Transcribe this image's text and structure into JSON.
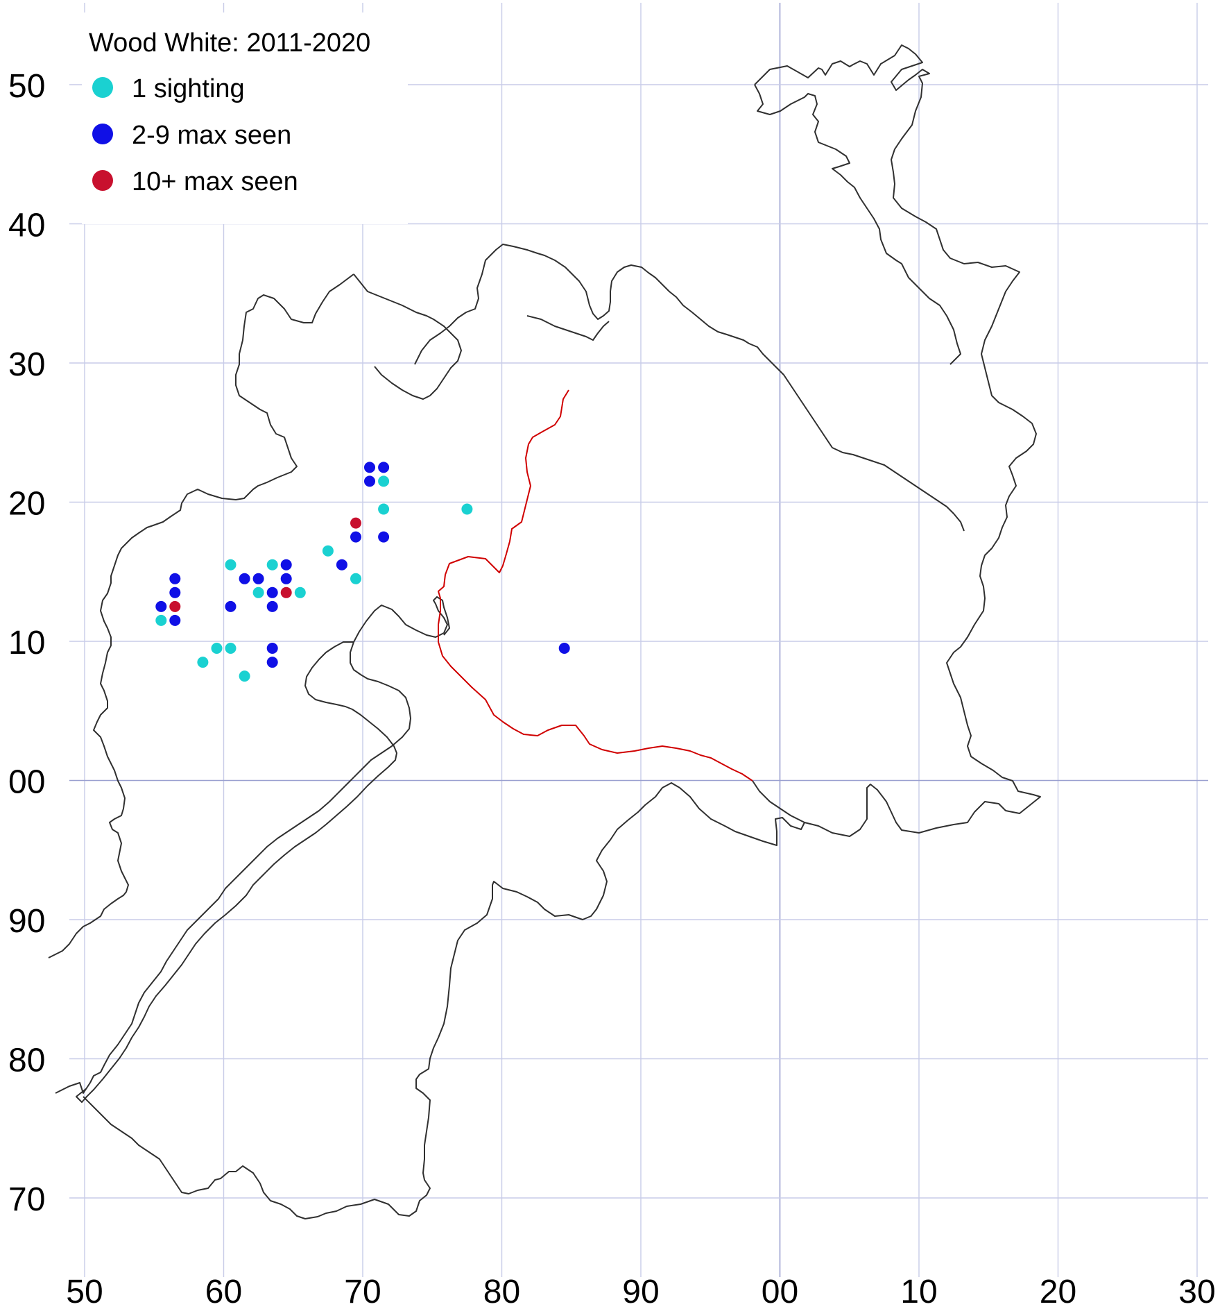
{
  "title": "Wood White:  2011-2020",
  "legend": [
    {
      "label": "1 sighting",
      "color": "#1ad1d1",
      "key": "one"
    },
    {
      "label": "2-9 max seen",
      "color": "#1010e6",
      "key": "few"
    },
    {
      "label": "10+ max seen",
      "color": "#c8102e",
      "key": "many"
    }
  ],
  "x_ticks": [
    "50",
    "60",
    "70",
    "80",
    "90",
    "00",
    "10",
    "20",
    "30"
  ],
  "y_ticks": [
    "50",
    "40",
    "30",
    "20",
    "10",
    "00",
    "90",
    "80",
    "70"
  ],
  "sightings": [
    {
      "x": 70.5,
      "y": 22.5,
      "key": "few"
    },
    {
      "x": 71.5,
      "y": 22.5,
      "key": "few"
    },
    {
      "x": 70.5,
      "y": 21.5,
      "key": "few"
    },
    {
      "x": 71.5,
      "y": 21.5,
      "key": "one"
    },
    {
      "x": 71.5,
      "y": 19.5,
      "key": "one"
    },
    {
      "x": 77.5,
      "y": 19.5,
      "key": "one"
    },
    {
      "x": 69.5,
      "y": 18.5,
      "key": "many"
    },
    {
      "x": 69.5,
      "y": 17.5,
      "key": "few"
    },
    {
      "x": 71.5,
      "y": 17.5,
      "key": "few"
    },
    {
      "x": 67.5,
      "y": 16.5,
      "key": "one"
    },
    {
      "x": 60.5,
      "y": 15.5,
      "key": "one"
    },
    {
      "x": 63.5,
      "y": 15.5,
      "key": "one"
    },
    {
      "x": 64.5,
      "y": 15.5,
      "key": "few"
    },
    {
      "x": 68.5,
      "y": 15.5,
      "key": "few"
    },
    {
      "x": 56.5,
      "y": 14.5,
      "key": "few"
    },
    {
      "x": 61.5,
      "y": 14.5,
      "key": "few"
    },
    {
      "x": 62.5,
      "y": 14.5,
      "key": "few"
    },
    {
      "x": 64.5,
      "y": 14.5,
      "key": "few"
    },
    {
      "x": 69.5,
      "y": 14.5,
      "key": "one"
    },
    {
      "x": 56.5,
      "y": 13.5,
      "key": "few"
    },
    {
      "x": 62.5,
      "y": 13.5,
      "key": "one"
    },
    {
      "x": 63.5,
      "y": 13.5,
      "key": "few"
    },
    {
      "x": 64.5,
      "y": 13.5,
      "key": "many"
    },
    {
      "x": 65.5,
      "y": 13.5,
      "key": "one"
    },
    {
      "x": 55.5,
      "y": 12.5,
      "key": "few"
    },
    {
      "x": 56.5,
      "y": 12.5,
      "key": "many"
    },
    {
      "x": 60.5,
      "y": 12.5,
      "key": "few"
    },
    {
      "x": 63.5,
      "y": 12.5,
      "key": "few"
    },
    {
      "x": 55.5,
      "y": 11.5,
      "key": "one"
    },
    {
      "x": 56.5,
      "y": 11.5,
      "key": "few"
    },
    {
      "x": 59.5,
      "y": 9.5,
      "key": "one"
    },
    {
      "x": 60.5,
      "y": 9.5,
      "key": "one"
    },
    {
      "x": 63.5,
      "y": 9.5,
      "key": "few"
    },
    {
      "x": 84.5,
      "y": 9.5,
      "key": "few"
    },
    {
      "x": 58.5,
      "y": 8.5,
      "key": "one"
    },
    {
      "x": 63.5,
      "y": 8.5,
      "key": "few"
    },
    {
      "x": 61.5,
      "y": 7.5,
      "key": "one"
    }
  ]
}
